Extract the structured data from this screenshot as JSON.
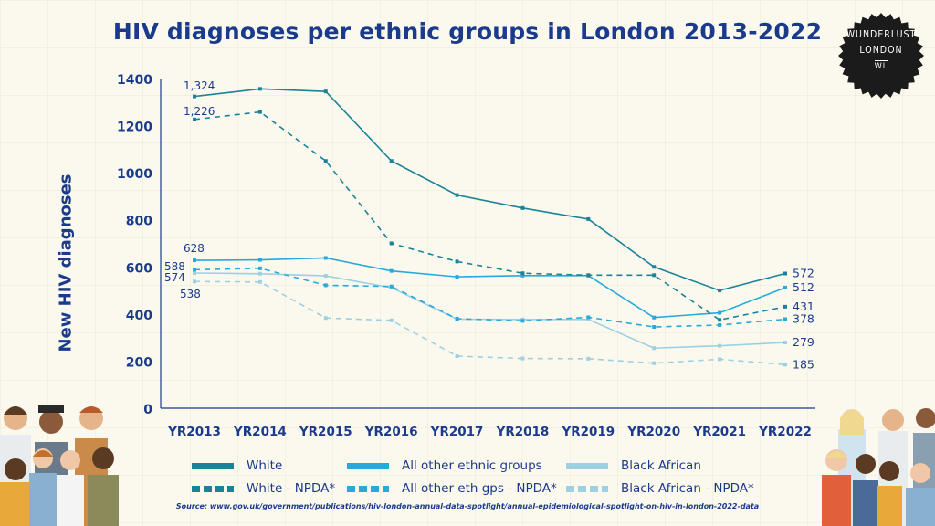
{
  "chart_data": {
    "type": "line",
    "title": "HIV diagnoses per ethnic groups in London 2013-2022",
    "xlabel": "",
    "ylabel": "New HIV diagnoses",
    "ylim": [
      0,
      1400
    ],
    "yticks": [
      0,
      200,
      400,
      600,
      800,
      1000,
      1200,
      1400
    ],
    "categories": [
      "YR2013",
      "YR2014",
      "YR2015",
      "YR2016",
      "YR2017",
      "YR2018",
      "YR2019",
      "YR2020",
      "YR2021",
      "YR2022"
    ],
    "series": [
      {
        "name": "White",
        "color": "#1a8299",
        "dashed": false,
        "values": [
          1324,
          1356,
          1345,
          1050,
          905,
          850,
          803,
          600,
          500,
          572
        ],
        "start_label": "1,324",
        "end_label": "572"
      },
      {
        "name": "All other ethnic groups",
        "color": "#29a9db",
        "dashed": false,
        "values": [
          628,
          630,
          638,
          583,
          558,
          563,
          563,
          385,
          405,
          512
        ],
        "start_label": "628",
        "end_label": "512"
      },
      {
        "name": "Black African",
        "color": "#9ed0e4",
        "dashed": false,
        "values": [
          574,
          571,
          562,
          512,
          378,
          377,
          377,
          255,
          265,
          279
        ],
        "start_label": "574",
        "end_label": "279"
      },
      {
        "name": "White - NPDA*",
        "color": "#1a8299",
        "dashed": true,
        "values": [
          1226,
          1258,
          1050,
          700,
          623,
          573,
          565,
          565,
          375,
          431
        ],
        "start_label": "1,226",
        "end_label": "431"
      },
      {
        "name": "All other eth gps - NPDA*",
        "color": "#29a9db",
        "dashed": true,
        "values": [
          588,
          594,
          522,
          517,
          380,
          371,
          386,
          345,
          353,
          378
        ],
        "start_label": "588",
        "end_label": "378"
      },
      {
        "name": "Black African - NPDA*",
        "color": "#9ed0e4",
        "dashed": true,
        "values": [
          538,
          536,
          383,
          373,
          221,
          211,
          210,
          191,
          208,
          185
        ],
        "start_label": "538",
        "end_label": "185"
      }
    ],
    "legend_position": "bottom"
  },
  "badge": {
    "line1": "WUNDERLUST",
    "line2": "LONDON",
    "mark": "WL"
  },
  "source": "Source: www.gov.uk/government/publications/hiv-london-annual-data-spotlight/annual-epidemiological-spotlight-on-hiv-in-london-2022-data",
  "colors": {
    "accent": "#1a3a8c",
    "background": "#fbf9ee"
  }
}
